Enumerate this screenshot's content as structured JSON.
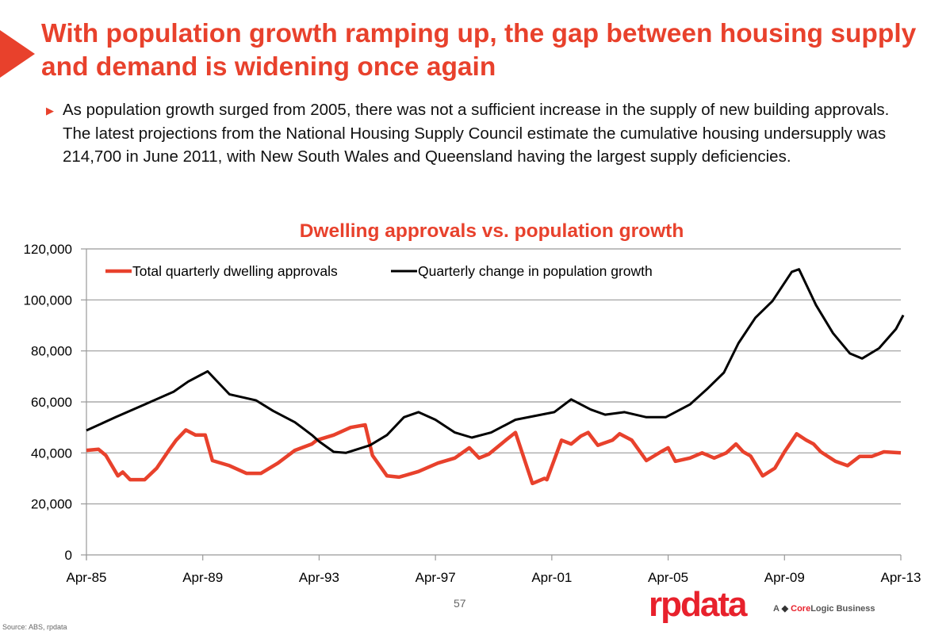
{
  "slide": {
    "title": "With population growth ramping up, the gap between housing supply and demand is widening once again",
    "bullet": "As population growth surged from 2005, there was not a sufficient increase in the supply of new building approvals.  The latest projections from the National Housing Supply Council estimate the cumulative housing undersupply was 214,700 in June 2011, with New South Wales and Queensland having the largest supply deficiencies.",
    "page_number": "57",
    "source": "Source:  ABS, rpdata",
    "logo": "rpdata",
    "logo_tagline_a": "A",
    "logo_tagline_core": "Core",
    "logo_tagline_logic": "Logic",
    "logo_tagline_business": "Business",
    "accent_color": "#e8412c"
  },
  "chart_data": {
    "type": "line",
    "title": "Dwelling approvals vs. population growth",
    "xlabel": "",
    "ylabel": "",
    "ylim": [
      0,
      120000
    ],
    "xlim": [
      "1985-04",
      "2013-04"
    ],
    "yticks": [
      "0",
      "20,000",
      "40,000",
      "60,000",
      "80,000",
      "100,000",
      "120,000"
    ],
    "ytick_values": [
      0,
      20000,
      40000,
      60000,
      80000,
      100000,
      120000
    ],
    "xticks": [
      "Apr-85",
      "Apr-89",
      "Apr-93",
      "Apr-97",
      "Apr-01",
      "Apr-05",
      "Apr-09",
      "Apr-13"
    ],
    "xtick_dates": [
      "1985-04",
      "1989-04",
      "1993-04",
      "1997-04",
      "2001-04",
      "2005-04",
      "2009-04",
      "2013-04"
    ],
    "grid": true,
    "legend": "top",
    "series": [
      {
        "name": "Total quarterly dwelling approvals",
        "color": "#e8412c",
        "points": [
          [
            "1985-04",
            41000
          ],
          [
            "1985-09",
            41400
          ],
          [
            "1985-12",
            39000
          ],
          [
            "1986-05",
            31000
          ],
          [
            "1986-07",
            32500
          ],
          [
            "1986-10",
            29500
          ],
          [
            "1987-04",
            29500
          ],
          [
            "1987-09",
            34000
          ],
          [
            "1988-02",
            41000
          ],
          [
            "1988-05",
            45000
          ],
          [
            "1988-09",
            49000
          ],
          [
            "1989-01",
            47000
          ],
          [
            "1989-05",
            47000
          ],
          [
            "1989-08",
            37000
          ],
          [
            "1990-03",
            35000
          ],
          [
            "1990-10",
            32000
          ],
          [
            "1991-04",
            32000
          ],
          [
            "1991-11",
            36000
          ],
          [
            "1992-06",
            41000
          ],
          [
            "1993-01",
            43500
          ],
          [
            "1993-03",
            45000
          ],
          [
            "1993-10",
            47000
          ],
          [
            "1994-05",
            50000
          ],
          [
            "1994-11",
            51000
          ],
          [
            "1995-02",
            39000
          ],
          [
            "1995-08",
            31000
          ],
          [
            "1996-01",
            30500
          ],
          [
            "1996-09",
            32700
          ],
          [
            "1997-05",
            36000
          ],
          [
            "1997-12",
            38000
          ],
          [
            "1998-06",
            42000
          ],
          [
            "1998-10",
            38000
          ],
          [
            "1999-02",
            39500
          ],
          [
            "1999-09",
            45000
          ],
          [
            "2000-01",
            48000
          ],
          [
            "2000-08",
            28000
          ],
          [
            "2001-01",
            30000
          ],
          [
            "2001-02",
            29500
          ],
          [
            "2001-08",
            45000
          ],
          [
            "2001-12",
            43500
          ],
          [
            "2002-04",
            46600
          ],
          [
            "2002-07",
            48000
          ],
          [
            "2002-11",
            43000
          ],
          [
            "2003-05",
            45000
          ],
          [
            "2003-08",
            47500
          ],
          [
            "2004-01",
            45000
          ],
          [
            "2004-07",
            37000
          ],
          [
            "2005-01",
            40400
          ],
          [
            "2005-04",
            42000
          ],
          [
            "2005-07",
            36700
          ],
          [
            "2006-01",
            38000
          ],
          [
            "2006-06",
            40000
          ],
          [
            "2006-11",
            38000
          ],
          [
            "2007-04",
            40000
          ],
          [
            "2007-08",
            43500
          ],
          [
            "2007-11",
            40400
          ],
          [
            "2008-02",
            38800
          ],
          [
            "2008-07",
            31000
          ],
          [
            "2008-12",
            34000
          ],
          [
            "2009-04",
            40400
          ],
          [
            "2009-09",
            47500
          ],
          [
            "2010-01",
            45000
          ],
          [
            "2010-04",
            43500
          ],
          [
            "2010-07",
            40400
          ],
          [
            "2011-01",
            36700
          ],
          [
            "2011-06",
            35000
          ],
          [
            "2011-11",
            38600
          ],
          [
            "2012-04",
            38600
          ],
          [
            "2012-09",
            40400
          ],
          [
            "2013-04",
            40000
          ]
        ]
      },
      {
        "name": "Quarterly change in population growth",
        "color": "#000000",
        "points": [
          [
            "1985-04",
            48800
          ],
          [
            "1986-04",
            54000
          ],
          [
            "1987-04",
            59000
          ],
          [
            "1988-04",
            64000
          ],
          [
            "1988-10",
            68000
          ],
          [
            "1989-06",
            72000
          ],
          [
            "1990-03",
            63000
          ],
          [
            "1991-02",
            60600
          ],
          [
            "1991-09",
            56500
          ],
          [
            "1992-06",
            52000
          ],
          [
            "1993-01",
            47000
          ],
          [
            "1993-04",
            44500
          ],
          [
            "1993-10",
            40400
          ],
          [
            "1994-03",
            40000
          ],
          [
            "1995-01",
            43000
          ],
          [
            "1995-08",
            47000
          ],
          [
            "1996-03",
            54000
          ],
          [
            "1996-09",
            56000
          ],
          [
            "1997-04",
            53000
          ],
          [
            "1997-12",
            48000
          ],
          [
            "1998-07",
            46000
          ],
          [
            "1999-03",
            48000
          ],
          [
            "2000-01",
            53000
          ],
          [
            "2001-05",
            56000
          ],
          [
            "2001-12",
            61000
          ],
          [
            "2002-08",
            57000
          ],
          [
            "2003-02",
            55000
          ],
          [
            "2003-10",
            56000
          ],
          [
            "2004-07",
            54000
          ],
          [
            "2005-03",
            54000
          ],
          [
            "2006-01",
            59000
          ],
          [
            "2006-08",
            65000
          ],
          [
            "2007-03",
            71500
          ],
          [
            "2007-09",
            83000
          ],
          [
            "2008-04",
            93000
          ],
          [
            "2008-11",
            99500
          ],
          [
            "2009-07",
            111000
          ],
          [
            "2009-10",
            112000
          ],
          [
            "2010-05",
            98000
          ],
          [
            "2010-12",
            87000
          ],
          [
            "2011-07",
            79000
          ],
          [
            "2011-12",
            77000
          ],
          [
            "2012-07",
            81000
          ],
          [
            "2013-02",
            88600
          ],
          [
            "2013-05",
            94000
          ]
        ]
      }
    ]
  }
}
